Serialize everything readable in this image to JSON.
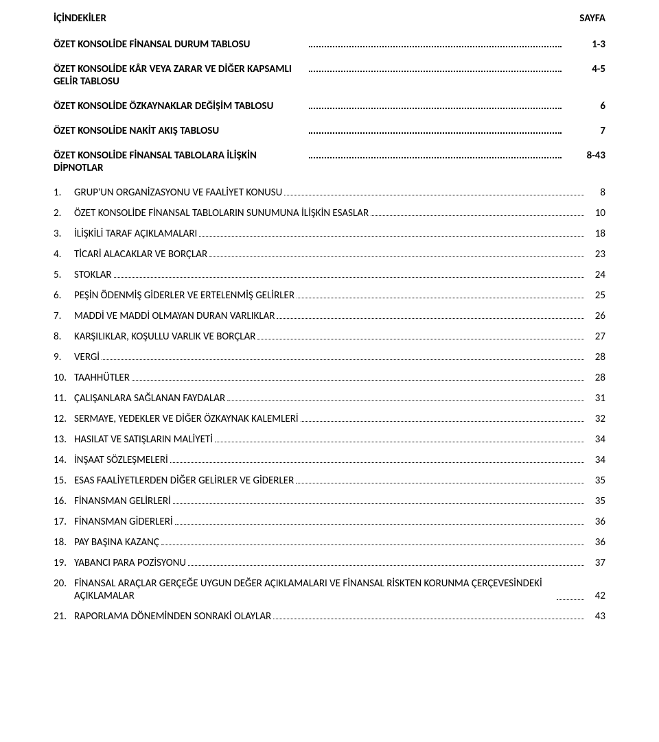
{
  "header": {
    "left": "İÇİNDEKİLER",
    "right": "SAYFA"
  },
  "sections": [
    {
      "label": "ÖZET KONSOLİDE FİNANSAL DURUM TABLOSU",
      "page": "1-3"
    },
    {
      "label": "ÖZET KONSOLİDE KÂR VEYA ZARAR VE DİĞER KAPSAMLI GELİR TABLOSU",
      "page": "4-5"
    },
    {
      "label": "ÖZET KONSOLİDE ÖZKAYNAKLAR DEĞİŞİM TABLOSU",
      "page": "6"
    },
    {
      "label": "ÖZET KONSOLİDE NAKİT AKIŞ TABLOSU",
      "page": "7"
    },
    {
      "label": "ÖZET KONSOLİDE FİNANSAL TABLOLARA İLİŞKİN DİPNOTLAR",
      "page": "8-43"
    }
  ],
  "entries": [
    {
      "num": "1.",
      "label": "GRUP'UN ORGANİZASYONU VE FAALİYET KONUSU",
      "page": "8"
    },
    {
      "num": "2.",
      "label": "ÖZET KONSOLİDE FİNANSAL TABLOLARIN SUNUMUNA İLİŞKİN ESASLAR",
      "page": "10"
    },
    {
      "num": "3.",
      "label": "İLİŞKİLİ TARAF AÇIKLAMALARI",
      "page": "18"
    },
    {
      "num": "4.",
      "label": "TİCARİ ALACAKLAR VE BORÇLAR",
      "page": "23"
    },
    {
      "num": "5.",
      "label": "STOKLAR",
      "page": "24"
    },
    {
      "num": "6.",
      "label": "PEŞİN ÖDENMİŞ GİDERLER VE ERTELENMİŞ GELİRLER",
      "page": "25"
    },
    {
      "num": "7.",
      "label": "MADDİ VE MADDİ OLMAYAN DURAN VARLIKLAR",
      "page": "26"
    },
    {
      "num": "8.",
      "label": "KARŞILIKLAR, KOŞULLU VARLIK VE BORÇLAR",
      "page": "27"
    },
    {
      "num": "9.",
      "label": "VERGİ",
      "page": "28"
    },
    {
      "num": "10.",
      "label": "TAAHHÜTLER",
      "page": "28"
    },
    {
      "num": "11.",
      "label": "ÇALIŞANLARA SAĞLANAN FAYDALAR",
      "page": "31"
    },
    {
      "num": "12.",
      "label": "SERMAYE, YEDEKLER VE DİĞER ÖZKAYNAK KALEMLERİ",
      "page": "32"
    },
    {
      "num": "13.",
      "label": "HASILAT VE SATIŞLARIN MALİYETİ",
      "page": "34"
    },
    {
      "num": "14.",
      "label": "İNŞAAT SÖZLEŞMELERİ",
      "page": "34"
    },
    {
      "num": "15.",
      "label": "ESAS FAALİYETLERDEN DİĞER GELİRLER VE GİDERLER",
      "page": "35"
    },
    {
      "num": "16.",
      "label": "FİNANSMAN GELİRLERİ",
      "page": "35"
    },
    {
      "num": "17.",
      "label": "FİNANSMAN GİDERLERİ",
      "page": "36"
    },
    {
      "num": "18.",
      "label": "PAY BAŞINA KAZANÇ",
      "page": "36"
    },
    {
      "num": "19.",
      "label": "YABANCI PARA POZİSYONU",
      "page": "37"
    },
    {
      "num": "20.",
      "label": "FİNANSAL ARAÇLAR GERÇEĞE UYGUN DEĞER AÇIKLAMALARI VE FİNANSAL RİSKTEN KORUNMA ÇERÇEVESİNDEKİ AÇIKLAMALAR",
      "page": "42",
      "wrap": true
    },
    {
      "num": "21.",
      "label": "RAPORLAMA DÖNEMİNDEN SONRAKİ OLAYLAR",
      "page": "43"
    }
  ]
}
